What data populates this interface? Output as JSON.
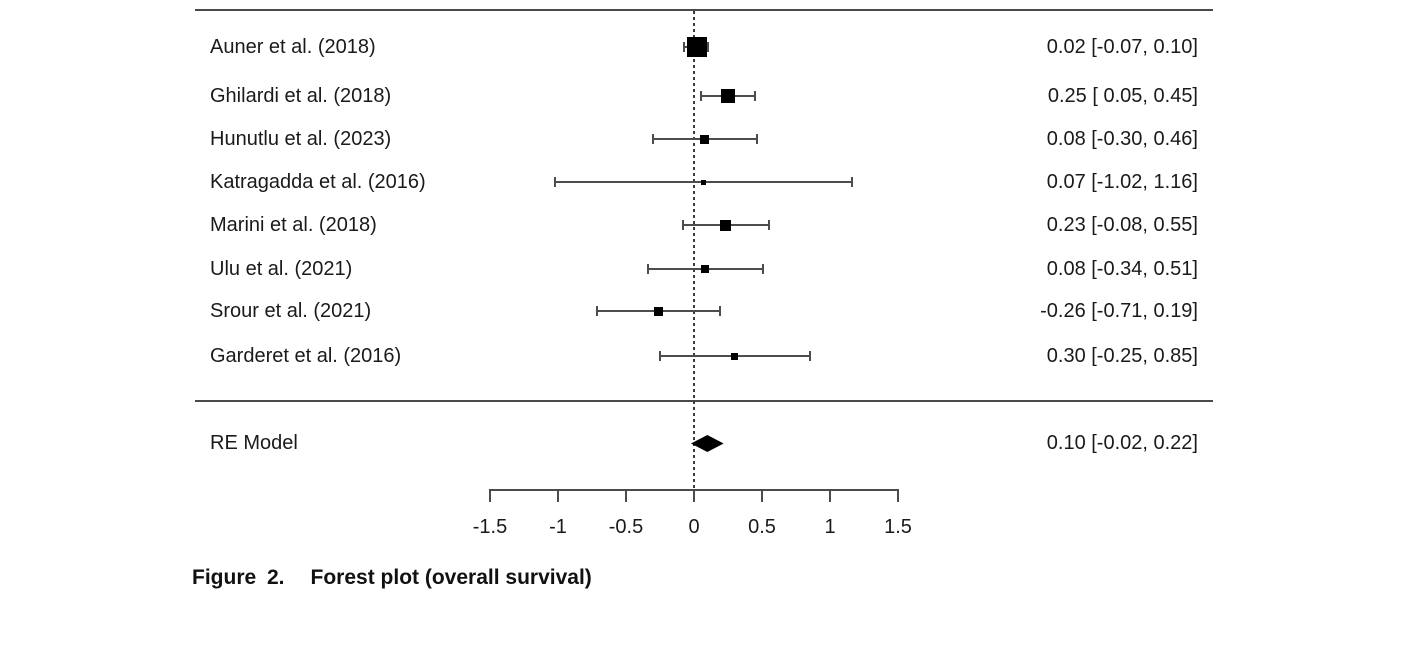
{
  "figure": {
    "caption_label": "Figure 2.",
    "caption_title": "Forest plot (overall survival)"
  },
  "chart_data": {
    "type": "forest",
    "title": "Forest plot (overall survival)",
    "studies": [
      {
        "label": "Auner et al. (2018)",
        "estimate": 0.02,
        "ci_lower": -0.07,
        "ci_upper": 0.1,
        "annotation": "0.02 [-0.07, 0.10]",
        "marker_size": 20
      },
      {
        "label": "Ghilardi et al. (2018)",
        "estimate": 0.25,
        "ci_lower": 0.05,
        "ci_upper": 0.45,
        "annotation": "0.25 [ 0.05, 0.45]",
        "marker_size": 14
      },
      {
        "label": "Hunutlu et al. (2023)",
        "estimate": 0.08,
        "ci_lower": -0.3,
        "ci_upper": 0.46,
        "annotation": "0.08 [-0.30, 0.46]",
        "marker_size": 9
      },
      {
        "label": "Katragadda et al. (2016)",
        "estimate": 0.07,
        "ci_lower": -1.02,
        "ci_upper": 1.16,
        "annotation": "0.07 [-1.02, 1.16]",
        "marker_size": 5
      },
      {
        "label": "Marini et al. (2018)",
        "estimate": 0.23,
        "ci_lower": -0.08,
        "ci_upper": 0.55,
        "annotation": "0.23 [-0.08, 0.55]",
        "marker_size": 11
      },
      {
        "label": "Ulu et al. (2021)",
        "estimate": 0.08,
        "ci_lower": -0.34,
        "ci_upper": 0.51,
        "annotation": "0.08 [-0.34, 0.51]",
        "marker_size": 8
      },
      {
        "label": "Srour et al. (2021)",
        "estimate": -0.26,
        "ci_lower": -0.71,
        "ci_upper": 0.19,
        "annotation": "-0.26 [-0.71, 0.19]",
        "marker_size": 9
      },
      {
        "label": "Garderet et al. (2016)",
        "estimate": 0.3,
        "ci_lower": -0.25,
        "ci_upper": 0.85,
        "annotation": "0.30 [-0.25, 0.85]",
        "marker_size": 7
      }
    ],
    "summary": {
      "label": "RE Model",
      "estimate": 0.1,
      "ci_lower": -0.02,
      "ci_upper": 0.22,
      "annotation": "0.10 [-0.02, 0.22]"
    },
    "x_axis": {
      "range": [
        -1.5,
        1.5
      ],
      "ticks": [
        -1.5,
        -1,
        -0.5,
        0,
        0.5,
        1,
        1.5
      ],
      "tick_labels": [
        "-1.5",
        "-1",
        "-0.5",
        "0",
        "0.5",
        "1",
        "1.5"
      ],
      "reference_line": 0
    },
    "colors": {
      "marker": "#000000",
      "line": "#4a4a4a",
      "text": "#1a1a1a",
      "background": "#ffffff"
    }
  }
}
